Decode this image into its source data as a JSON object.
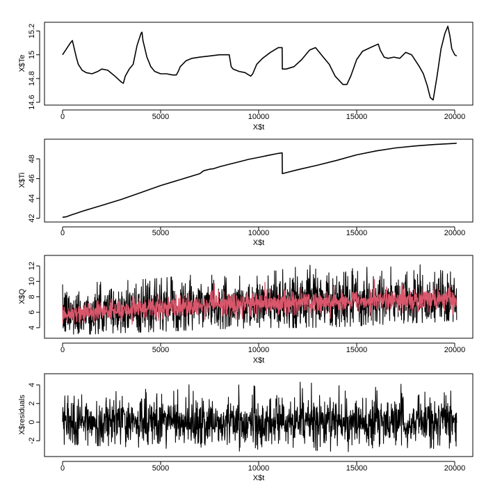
{
  "chart_data": [
    {
      "type": "line",
      "xlabel": "X$t",
      "ylabel": "X$Te",
      "xlim": [
        0,
        20200
      ],
      "ylim": [
        14.6,
        15.25
      ],
      "x_ticks": [
        0,
        5000,
        10000,
        15000,
        20000
      ],
      "y_ticks": [
        14.6,
        14.8,
        15.0,
        15.2
      ],
      "grid": false,
      "series": [
        {
          "color": "#000000",
          "x": [
            0,
            200,
            400,
            500,
            600,
            700,
            800,
            1000,
            1200,
            1500,
            1800,
            2000,
            2300,
            2600,
            2800,
            3000,
            3100,
            3200,
            3400,
            3600,
            3800,
            4000,
            4050,
            4100,
            4300,
            4500,
            4700,
            5000,
            5300,
            5600,
            5800,
            5900,
            6000,
            6300,
            6600,
            7000,
            7500,
            8000,
            8500,
            8600,
            8700,
            9000,
            9300,
            9600,
            9700,
            9900,
            10200,
            10600,
            11000,
            11200,
            11210,
            11400,
            11800,
            12200,
            12600,
            12900,
            13200,
            13600,
            13900,
            14300,
            14500,
            14700,
            15000,
            15300,
            15700,
            16100,
            16200,
            16400,
            16600,
            16900,
            17200,
            17500,
            17800,
            18000,
            18200,
            18400,
            18600,
            18750,
            18900,
            19100,
            19300,
            19500,
            19650,
            19750,
            19850,
            20000,
            20100
          ],
          "y": [
            15.0,
            15.05,
            15.1,
            15.12,
            15.05,
            14.98,
            14.92,
            14.87,
            14.85,
            14.84,
            14.86,
            14.88,
            14.87,
            14.83,
            14.8,
            14.77,
            14.76,
            14.82,
            14.88,
            14.92,
            15.08,
            15.18,
            15.19,
            15.12,
            14.98,
            14.9,
            14.86,
            14.84,
            14.84,
            14.83,
            14.83,
            14.86,
            14.9,
            14.95,
            14.97,
            14.98,
            14.99,
            15.0,
            15.0,
            14.9,
            14.88,
            14.86,
            14.85,
            14.82,
            14.84,
            14.92,
            14.97,
            15.02,
            15.06,
            15.06,
            14.88,
            14.88,
            14.9,
            14.96,
            15.04,
            15.06,
            15.0,
            14.92,
            14.82,
            14.75,
            14.75,
            14.82,
            14.96,
            15.03,
            15.06,
            15.09,
            15.04,
            14.98,
            14.97,
            14.98,
            14.97,
            15.02,
            15.0,
            14.95,
            14.9,
            14.84,
            14.74,
            14.64,
            14.62,
            14.82,
            15.05,
            15.18,
            15.24,
            15.16,
            15.05,
            15.0,
            14.99
          ]
        }
      ]
    },
    {
      "type": "line",
      "xlabel": "X$t",
      "ylabel": "X$Ti",
      "xlim": [
        0,
        20200
      ],
      "ylim": [
        41.9,
        49.7
      ],
      "x_ticks": [
        0,
        5000,
        10000,
        15000,
        20000
      ],
      "y_ticks": [
        42,
        44,
        46,
        48
      ],
      "grid": false,
      "series": [
        {
          "color": "#000000",
          "x": [
            0,
            200,
            400,
            700,
            1000,
            2000,
            3000,
            4000,
            5000,
            6000,
            7000,
            7200,
            7500,
            7700,
            8000,
            8500,
            9000,
            9500,
            10000,
            10500,
            11000,
            11200,
            11210,
            12000,
            13000,
            14000,
            15000,
            16000,
            17000,
            18000,
            19000,
            20000,
            20100
          ],
          "y": [
            42.1,
            42.15,
            42.3,
            42.5,
            42.7,
            43.3,
            43.9,
            44.6,
            45.3,
            45.9,
            46.5,
            46.8,
            46.95,
            47.0,
            47.2,
            47.45,
            47.7,
            47.95,
            48.15,
            48.35,
            48.55,
            48.6,
            46.5,
            46.9,
            47.35,
            47.85,
            48.4,
            48.8,
            49.1,
            49.3,
            49.45,
            49.55,
            49.58
          ]
        }
      ]
    },
    {
      "type": "line",
      "xlabel": "X$t",
      "ylabel": "X$Q",
      "xlim": [
        0,
        20200
      ],
      "ylim": [
        3,
        13
      ],
      "x_ticks": [
        0,
        5000,
        10000,
        15000,
        20000
      ],
      "y_ticks": [
        4,
        6,
        8,
        10,
        12
      ],
      "grid": false,
      "series": [
        {
          "color": "#000000",
          "x": [
            0,
            2500,
            5000,
            7500,
            10000,
            12500,
            15000,
            17500,
            20000,
            20100
          ],
          "y": [
            5.8,
            6.2,
            6.6,
            6.9,
            7.1,
            7.3,
            7.5,
            7.6,
            7.7,
            7.7
          ],
          "spread": [
            1.8,
            1.8,
            1.9,
            1.9,
            1.9,
            1.9,
            1.9,
            1.9,
            1.9,
            1.9
          ],
          "range": [
            [
              3.0,
              9.6
            ],
            [
              3.3,
              10.0
            ],
            [
              3.5,
              10.4
            ],
            [
              3.8,
              11.2
            ],
            [
              4.0,
              11.0
            ],
            [
              4.0,
              12.1
            ],
            [
              4.2,
              11.8
            ],
            [
              4.6,
              12.0
            ],
            [
              4.8,
              12.9
            ],
            [
              5.0,
              12.9
            ]
          ]
        },
        {
          "color": "#d9566b",
          "x": [
            0,
            2500,
            5000,
            7500,
            10000,
            12500,
            15000,
            17500,
            20000,
            20100
          ],
          "y": [
            5.8,
            6.2,
            6.6,
            6.9,
            7.1,
            7.3,
            7.5,
            7.6,
            7.7,
            7.7
          ],
          "spread": [
            0.75,
            0.75,
            0.8,
            0.8,
            0.8,
            0.8,
            0.8,
            0.8,
            0.8,
            0.8
          ]
        }
      ]
    },
    {
      "type": "line",
      "xlabel": "X$t",
      "ylabel": "X$residuals",
      "xlim": [
        0,
        20200
      ],
      "ylim": [
        -3.4,
        4.9
      ],
      "x_ticks": [
        0,
        5000,
        10000,
        15000,
        20000
      ],
      "y_ticks": [
        -2,
        0,
        2,
        4
      ],
      "grid": false,
      "series": [
        {
          "color": "#000000",
          "x": [
            0,
            2500,
            5000,
            7500,
            10000,
            12500,
            15000,
            17500,
            20000,
            20100
          ],
          "y": [
            0,
            0,
            0,
            0,
            0,
            0,
            0,
            0,
            0,
            0
          ],
          "spread": [
            1.4,
            1.4,
            1.4,
            1.4,
            1.4,
            1.4,
            1.4,
            1.4,
            1.4,
            1.4
          ],
          "range": [
            [
              -2.4,
              2.8
            ],
            [
              -2.6,
              3.2
            ],
            [
              -2.8,
              4.3
            ],
            [
              -3.0,
              4.0
            ],
            [
              -3.2,
              4.0
            ],
            [
              -3.0,
              4.6
            ],
            [
              -3.3,
              4.2
            ],
            [
              -2.9,
              4.3
            ],
            [
              -2.8,
              4.0
            ],
            [
              -2.5,
              4.8
            ]
          ]
        }
      ]
    }
  ]
}
